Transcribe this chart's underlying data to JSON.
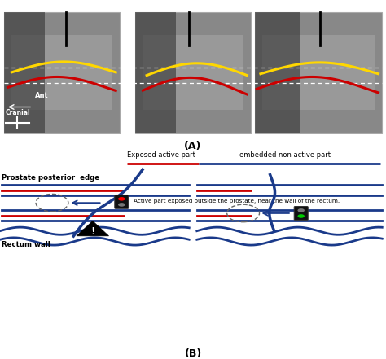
{
  "fig_width": 4.74,
  "fig_height": 4.41,
  "dpi": 100,
  "bg_color": "#ffffff",
  "label_A": "(A)",
  "label_B": "(B)",
  "blue_color": "#1a3a8a",
  "red_color": "#cc0000",
  "text_prostate": "Prostate posterior  edge",
  "text_rectum": "Rectum wall",
  "text_active": "Active part exposed outside the prostate, near the wall of the rectum.",
  "text_exposed": "Exposed active part",
  "text_embedded": "embedded non active part"
}
